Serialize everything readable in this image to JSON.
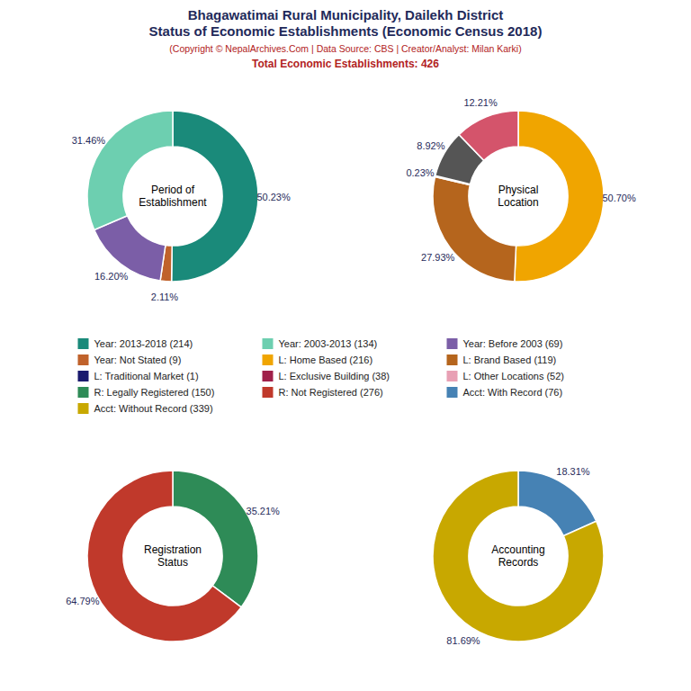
{
  "title": "Bhagawatimai Rural Municipality, Dailekh District\nStatus of Economic Establishments (Economic Census 2018)",
  "subtitle": "(Copyright © NepalArchives.Com | Data Source: CBS | Creator/Analyst: Milan Karki)",
  "annotations": [
    "Total Economic Establishments: 426"
  ],
  "chart_data": [
    {
      "type": "pie",
      "title": "Period of\nEstablishment",
      "values": [
        50.23,
        2.11,
        16.2,
        31.46
      ],
      "value_labels": [
        "50.23%",
        "2.11%",
        "16.20%",
        "31.46%"
      ],
      "colors": [
        "#1a8a7a",
        "#c0622b",
        "#7b5ea7",
        "#6dcfb0"
      ],
      "data_labels": true
    },
    {
      "type": "pie",
      "title": "Physical\nLocation",
      "values": [
        50.7,
        27.93,
        0.23,
        8.92,
        12.21
      ],
      "value_labels": [
        "50.70%",
        "27.93%",
        "0.23%",
        "8.92%",
        "12.21%"
      ],
      "colors": [
        "#f0a500",
        "#b5651d",
        "#1a1a6e",
        "#555555",
        "#d4546b"
      ],
      "data_labels": true
    },
    {
      "type": "pie",
      "title": "Registration\nStatus",
      "values": [
        35.21,
        64.79
      ],
      "value_labels": [
        "35.21%",
        "64.79%"
      ],
      "colors": [
        "#2e8b57",
        "#c0392b"
      ],
      "data_labels": true
    },
    {
      "type": "pie",
      "title": "Accounting\nRecords",
      "values": [
        18.31,
        81.69
      ],
      "value_labels": [
        "18.31%",
        "81.69%"
      ],
      "colors": [
        "#4682b4",
        "#c8a800"
      ],
      "data_labels": true
    }
  ],
  "legend_columns": [
    [
      {
        "label": "Year: 2013-2018 (214)",
        "color": "#1a8a7a"
      },
      {
        "label": "Year: Not Stated (9)",
        "color": "#c0622b"
      },
      {
        "label": "L: Traditional Market (1)",
        "color": "#1a1a6e"
      },
      {
        "label": "R: Legally Registered (150)",
        "color": "#2e8b57"
      },
      {
        "label": "Acct: Without Record (339)",
        "color": "#c8a800"
      }
    ],
    [
      {
        "label": "Year: 2003-2013 (134)",
        "color": "#6dcfb0"
      },
      {
        "label": "L: Home Based (216)",
        "color": "#f0a500"
      },
      {
        "label": "L: Exclusive Building (38)",
        "color": "#a0204a"
      },
      {
        "label": "R: Not Registered (276)",
        "color": "#c0392b"
      }
    ],
    [
      {
        "label": "Year: Before 2003 (69)",
        "color": "#7b5ea7"
      },
      {
        "label": "L: Brand Based (119)",
        "color": "#b5651d"
      },
      {
        "label": "L: Other Locations (52)",
        "color": "#e8a0b4"
      },
      {
        "label": "Acct: With Record (76)",
        "color": "#4682b4"
      }
    ]
  ]
}
